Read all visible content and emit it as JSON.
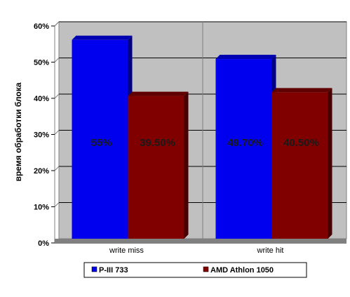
{
  "chart_data": {
    "type": "bar",
    "title": "",
    "xlabel": "",
    "ylabel": "время обработки блока",
    "categories": [
      "write miss",
      "write hit"
    ],
    "series": [
      {
        "name": "P-III 733",
        "values": [
          55,
          49.7
        ],
        "labels": [
          "55%",
          "49.70%"
        ],
        "color": "#0000ee"
      },
      {
        "name": "AMD Athlon 1050",
        "values": [
          39.5,
          40.5
        ],
        "labels": [
          "39.50%",
          "40.50%"
        ],
        "color": "#800000"
      }
    ],
    "ylim": [
      0,
      60
    ],
    "yticks": [
      0,
      10,
      20,
      30,
      40,
      50,
      60
    ],
    "ytick_labels": [
      "0%",
      "10%",
      "20%",
      "30%",
      "40%",
      "50%",
      "60%"
    ],
    "grid": true,
    "legend_position": "bottom",
    "colors": {
      "plot_background": "#c0c0c0",
      "gridline": "#000000"
    }
  }
}
